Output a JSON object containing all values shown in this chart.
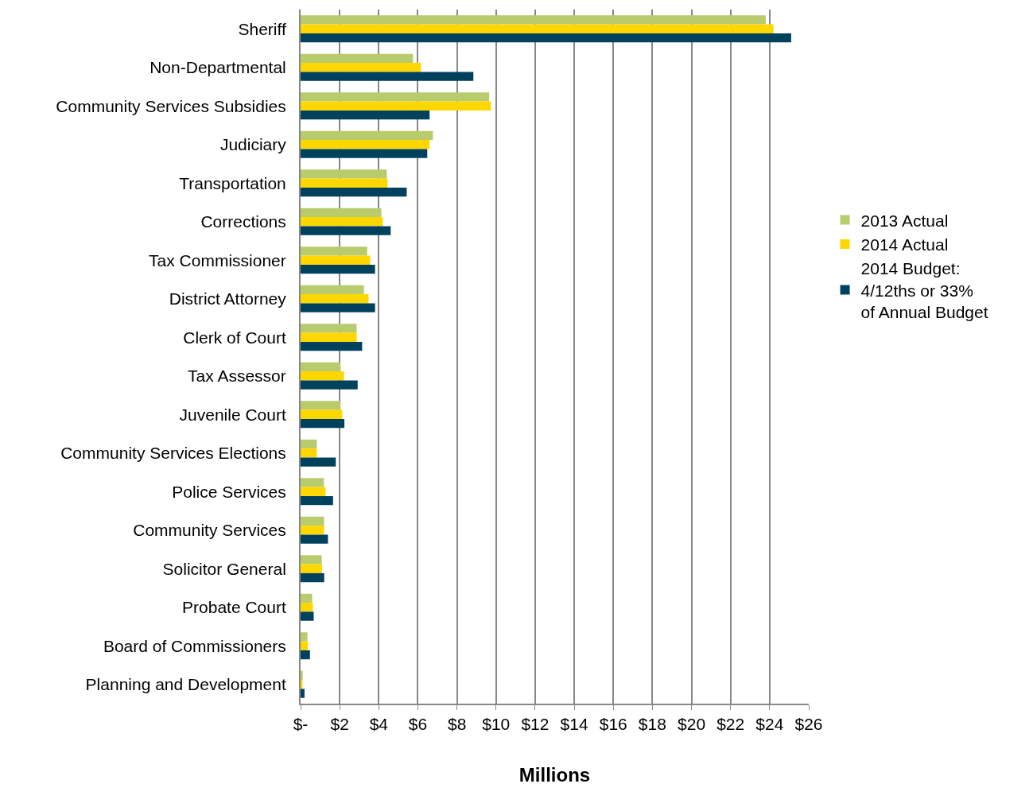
{
  "chart_data": {
    "type": "bar",
    "orientation": "horizontal",
    "xlabel": "Millions",
    "categories": [
      "Sheriff",
      "Non-Departmental",
      "Community Services Subsidies",
      "Judiciary",
      "Transportation",
      "Corrections",
      "Tax Commissioner",
      "District Attorney",
      "Clerk of Court",
      "Tax Assessor",
      "Juvenile Court",
      "Community Services Elections",
      "Police Services",
      "Community Services",
      "Solicitor General",
      "Probate Court",
      "Board of Commissioners",
      "Planning and Development"
    ],
    "series": [
      {
        "name": "2013 Actual",
        "color": "#b8cc6e",
        "values": [
          23.8,
          5.75,
          9.65,
          6.77,
          4.41,
          4.13,
          3.41,
          3.24,
          2.87,
          2.05,
          2.05,
          0.83,
          1.19,
          1.2,
          1.08,
          0.59,
          0.35,
          0.11
        ]
      },
      {
        "name": "2014 Actual",
        "color": "#ffd700",
        "values": [
          24.2,
          6.16,
          9.74,
          6.6,
          4.45,
          4.2,
          3.56,
          3.48,
          2.87,
          2.22,
          2.13,
          0.83,
          1.28,
          1.2,
          1.1,
          0.63,
          0.37,
          0.1
        ]
      },
      {
        "name": "2014 Budget: 4/12ths or 33% of Annual Budget",
        "color": "#00425e",
        "values": [
          25.1,
          8.84,
          6.6,
          6.48,
          5.43,
          4.61,
          3.81,
          3.81,
          3.15,
          2.92,
          2.24,
          1.8,
          1.66,
          1.4,
          1.21,
          0.67,
          0.48,
          0.2
        ]
      }
    ],
    "xlim": [
      0,
      26
    ],
    "xticks": [
      {
        "value": 0,
        "label": "$-"
      },
      {
        "value": 2,
        "label": "$2"
      },
      {
        "value": 4,
        "label": "$4"
      },
      {
        "value": 6,
        "label": "$6"
      },
      {
        "value": 8,
        "label": "$8"
      },
      {
        "value": 10,
        "label": "$10"
      },
      {
        "value": 12,
        "label": "$12"
      },
      {
        "value": 14,
        "label": "$14"
      },
      {
        "value": 16,
        "label": "$16"
      },
      {
        "value": 18,
        "label": "$18"
      },
      {
        "value": 20,
        "label": "$20"
      },
      {
        "value": 22,
        "label": "$22"
      },
      {
        "value": 24,
        "label": "$24"
      },
      {
        "value": 26,
        "label": "$26"
      }
    ],
    "grid": "x",
    "legend": "right"
  }
}
